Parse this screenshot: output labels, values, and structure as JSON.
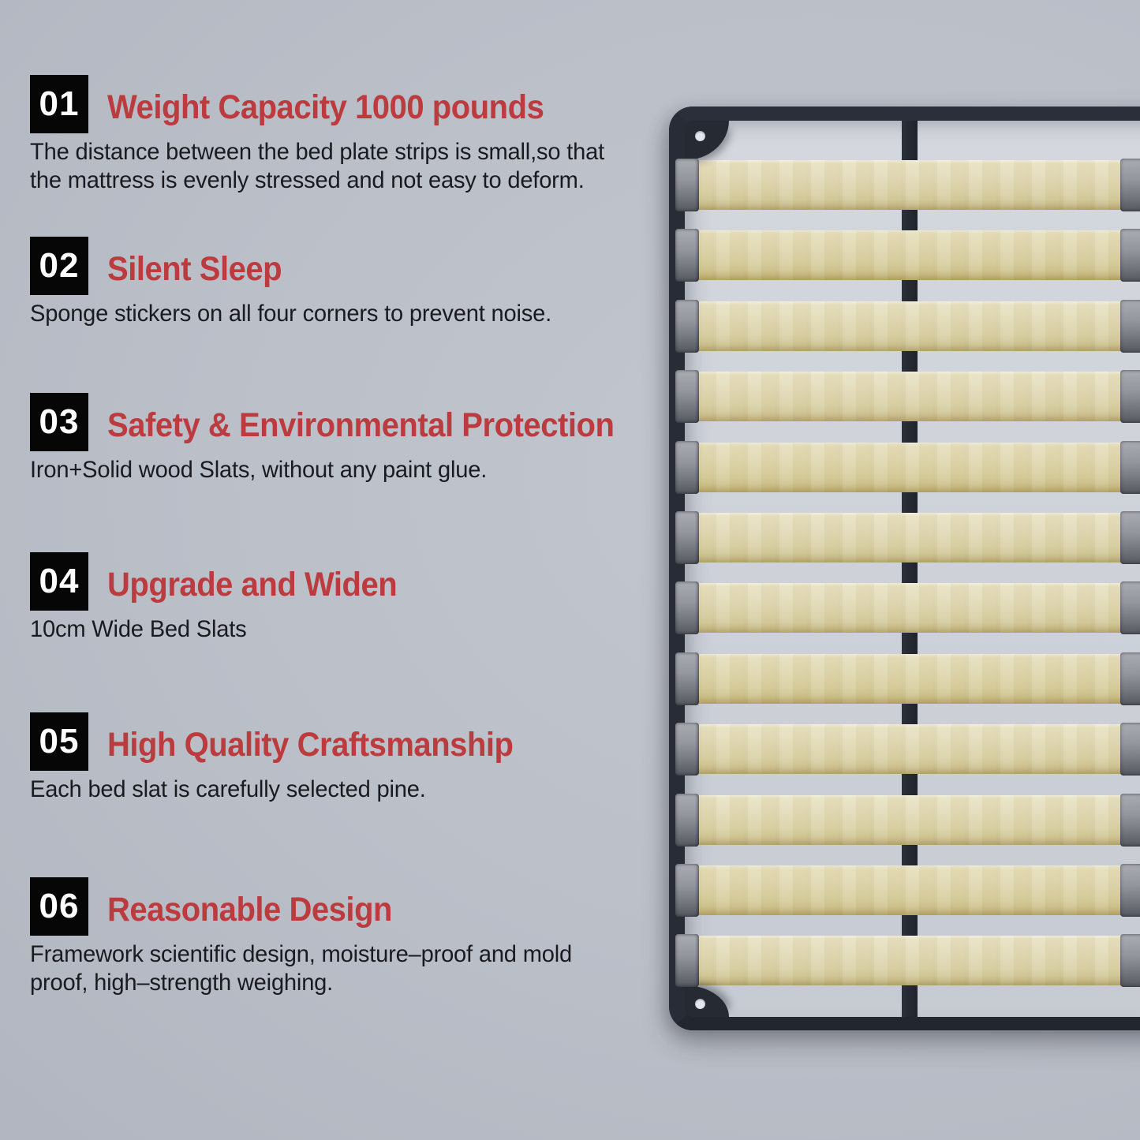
{
  "colors": {
    "accent_red": "#bc3b3e",
    "number_box_black": "#060607",
    "body_text": "#1a1b20",
    "background_gray": "#b9bdc7",
    "frame_dark": "#272b34",
    "wood_light": "#e2dbb8",
    "bracket_gray": "#8d9096",
    "floor_light": "#cdd1d8"
  },
  "features": [
    {
      "number": "01",
      "title": "Weight Capacity 1000 pounds",
      "body": "The distance between the bed plate strips is small,so that\nthe mattress is evenly stressed and not easy to deform."
    },
    {
      "number": "02",
      "title": "Silent Sleep",
      "body": "Sponge stickers on all four corners to prevent noise."
    },
    {
      "number": "03",
      "title": "Safety & Environmental Protection",
      "body": "Iron+Solid wood Slats, without any paint glue."
    },
    {
      "number": "04",
      "title": "Upgrade and Widen",
      "body": "10cm Wide Bed Slats"
    },
    {
      "number": "05",
      "title": "High Quality Craftsmanship",
      "body": "Each bed slat is carefully selected pine."
    },
    {
      "number": "06",
      "title": "Reasonable Design",
      "body": "Framework scientific design, moisture–proof and mold\nproof, high–strength weighing."
    }
  ],
  "product_photo": {
    "description": "Top view of a black metal platform bed frame with wide pine slats, gray slat brackets, center support rail and corner screw plates",
    "slat_count": 12
  }
}
